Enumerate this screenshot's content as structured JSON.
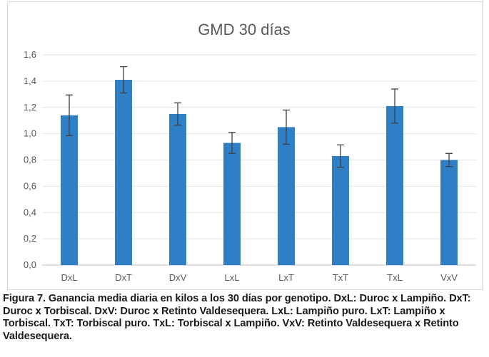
{
  "chart_data": {
    "type": "bar",
    "title": "GMD 30 días",
    "categories": [
      "DxL",
      "DxT",
      "DxV",
      "LxL",
      "LxT",
      "TxT",
      "TxL",
      "VxV"
    ],
    "values": [
      1.14,
      1.41,
      1.15,
      0.93,
      1.05,
      0.83,
      1.21,
      0.8
    ],
    "error": [
      0.155,
      0.1,
      0.085,
      0.08,
      0.13,
      0.085,
      0.13,
      0.05
    ],
    "ylim": [
      0,
      1.6
    ],
    "yticks": [
      "0,0",
      "0,2",
      "0,4",
      "0,6",
      "0,8",
      "1,0",
      "1,2",
      "1,4",
      "1,6"
    ],
    "grid": true,
    "bar_color": "#2e7fc6",
    "error_bar_color": "#404040"
  },
  "caption": "Figura 7. Ganancia media diaria en kilos a los 30 días por genotipo. DxL: Duroc x Lampiño. DxT: Duroc x Torbiscal. DxV: Duroc x Retinto Valdesequera. LxL: Lampiño puro. LxT: Lampiño x Torbiscal. TxT: Torbiscal puro. TxL: Torbiscal x Lampiño. VxV: Retinto Valdesequera x Retinto Valdesequera."
}
